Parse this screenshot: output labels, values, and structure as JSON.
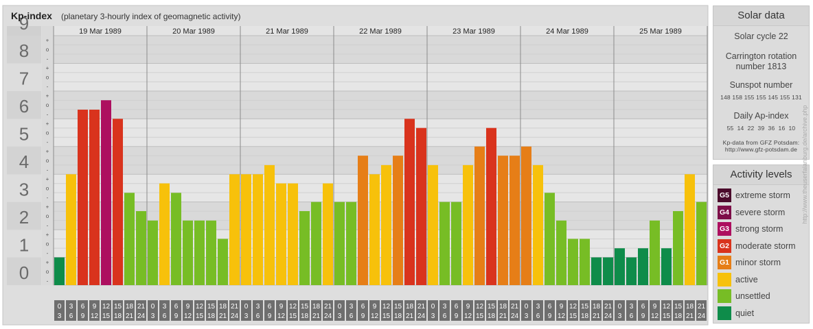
{
  "header": {
    "title": "Kp-index",
    "subtitle": "(planetary 3-hourly index of geomagnetic activity)"
  },
  "solar": {
    "title": "Solar data",
    "cycle": "Solar cycle 22",
    "rotation_line1": "Carrington rotation",
    "rotation_line2": "number 1813",
    "sunspot_label": "Sunspot number",
    "sunspot_values": "148 158 155 155 145 155 131",
    "ap_label": "Daily Ap-index",
    "ap_values": "55  14  22  39  36  16  10",
    "source_line1": "Kp-data from GFZ Potsdam:",
    "source_line2": "http://www.gfz-potsdam.de"
  },
  "legend": {
    "title": "Activity levels",
    "items": [
      {
        "code": "G5",
        "label": "extreme storm",
        "color": "#4b0b2c"
      },
      {
        "code": "G4",
        "label": "severe storm",
        "color": "#7d0e48"
      },
      {
        "code": "G3",
        "label": "strong storm",
        "color": "#ad0f5f"
      },
      {
        "code": "G2",
        "label": "moderate storm",
        "color": "#d9331d"
      },
      {
        "code": "G1",
        "label": "minor storm",
        "color": "#e67e17"
      },
      {
        "code": "",
        "label": "active",
        "color": "#f7c10b"
      },
      {
        "code": "",
        "label": "unsettled",
        "color": "#77bd25"
      },
      {
        "code": "",
        "label": "quiet",
        "color": "#0e8c4a"
      }
    ]
  },
  "watermark": "http://www.theuserfalanburg.de/archive.php",
  "chart_data": {
    "type": "bar",
    "title": "Kp-index",
    "days": [
      "19 Mar 1989",
      "20 Mar 1989",
      "21 Mar 1989",
      "22 Mar 1989",
      "23 Mar 1989",
      "24 Mar 1989",
      "25 Mar 1989"
    ],
    "slot_top_labels": [
      "0",
      "3",
      "6",
      "9",
      "12",
      "15",
      "18",
      "21"
    ],
    "slot_bottom_labels": [
      "3",
      "6",
      "9",
      "12",
      "15",
      "18",
      "21",
      "24"
    ],
    "y_ticks": [
      "0",
      "1",
      "2",
      "3",
      "4",
      "5",
      "6",
      "7",
      "8",
      "9"
    ],
    "ylim": [
      0,
      9
    ],
    "values": [
      1.0,
      4.0,
      6.33,
      6.33,
      6.67,
      6.0,
      3.33,
      2.67,
      2.33,
      3.67,
      3.33,
      2.33,
      2.33,
      2.33,
      1.67,
      4.0,
      4.0,
      4.0,
      4.33,
      3.67,
      3.67,
      2.67,
      3.0,
      3.67,
      3.0,
      3.0,
      4.67,
      4.0,
      4.33,
      4.67,
      6.0,
      5.67,
      4.33,
      3.0,
      3.0,
      4.33,
      5.0,
      5.67,
      4.67,
      4.67,
      5.0,
      4.33,
      3.33,
      2.33,
      1.67,
      1.67,
      1.0,
      1.0,
      1.33,
      1.0,
      1.33,
      2.33,
      1.33,
      2.67,
      4.0,
      3.0
    ]
  }
}
